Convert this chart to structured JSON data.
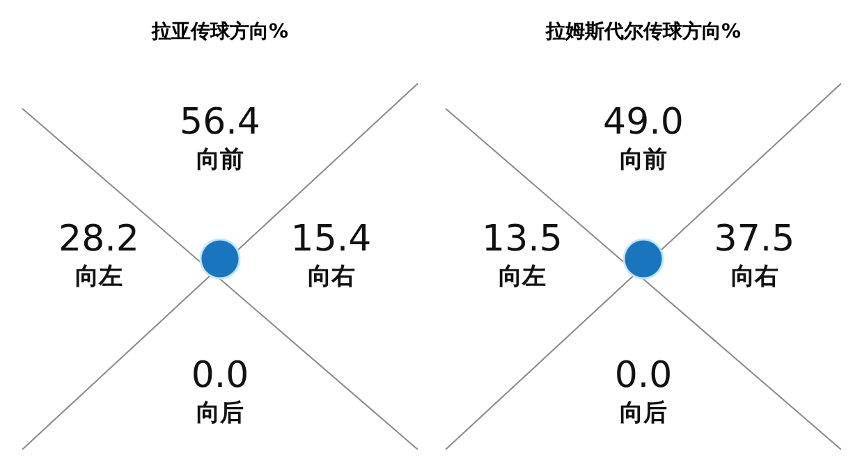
{
  "chart_data": [
    {
      "type": "other",
      "title": "拉亚传球方向%",
      "categories": [
        "向前",
        "向右",
        "向后",
        "向左"
      ],
      "values": [
        56.4,
        15.4,
        0.0,
        28.2
      ],
      "value_labels": [
        "56.4",
        "15.4",
        "0.0",
        "28.2"
      ]
    },
    {
      "type": "other",
      "title": "拉姆斯代尔传球方向%",
      "categories": [
        "向前",
        "向右",
        "向后",
        "向左"
      ],
      "values": [
        49.0,
        37.5,
        0.0,
        13.5
      ],
      "value_labels": [
        "49.0",
        "37.5",
        "0.0",
        "13.5"
      ]
    }
  ]
}
